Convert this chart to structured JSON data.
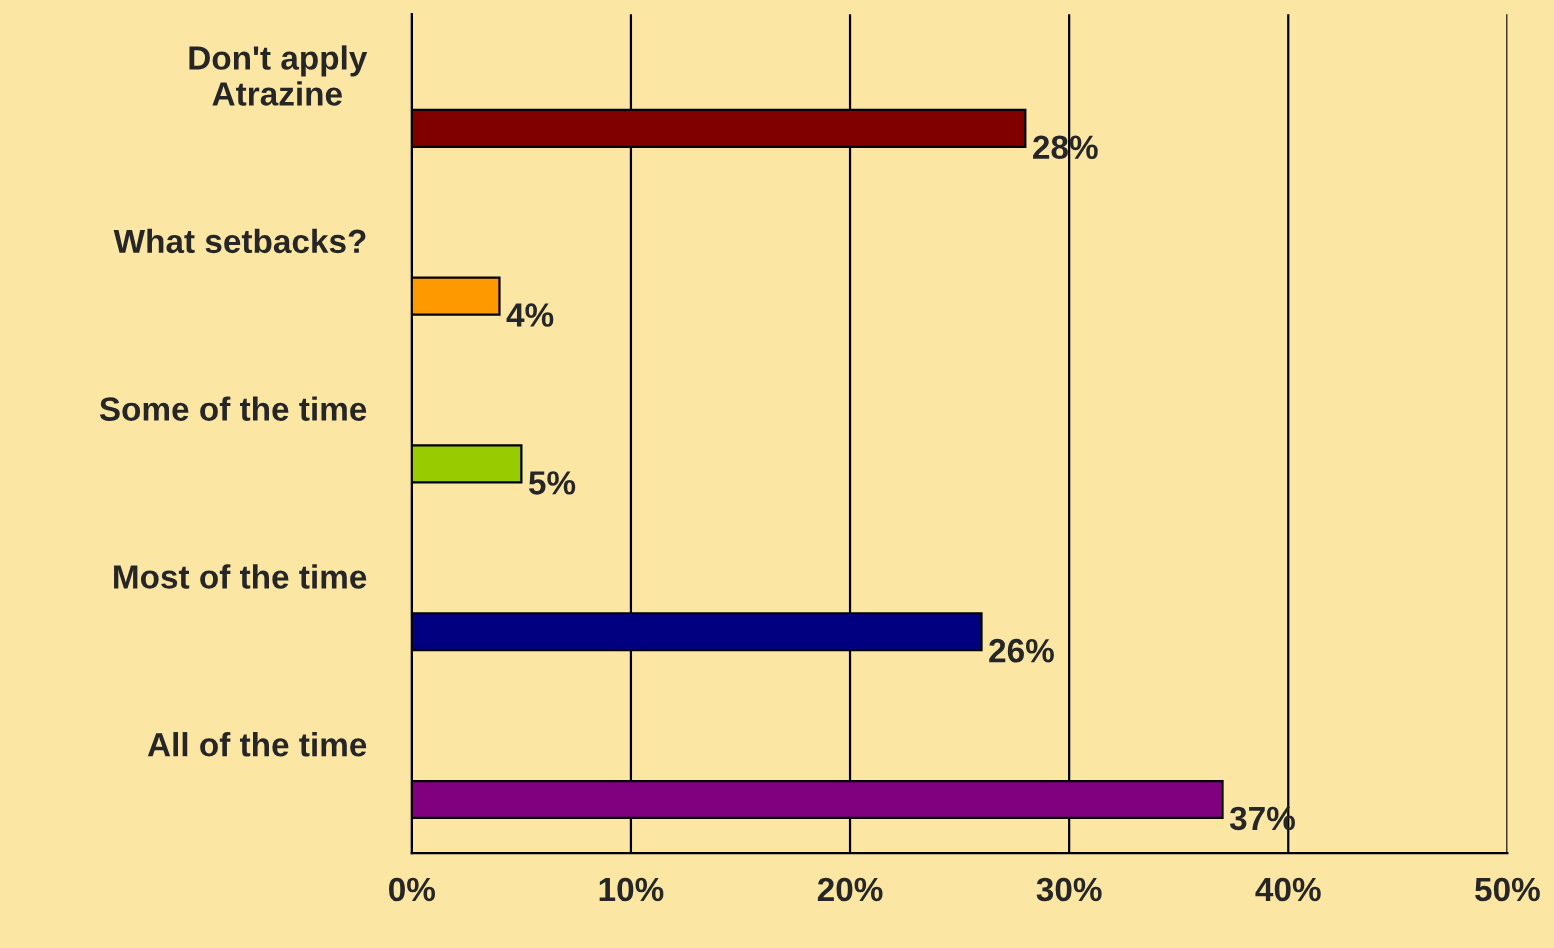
{
  "chart_data": {
    "type": "bar",
    "orientation": "horizontal",
    "categories": [
      "Don't apply\nAtrazine",
      "What setbacks?",
      "Some of the time",
      "Most of the time",
      "All of the time"
    ],
    "values": [
      28,
      4,
      5,
      26,
      37
    ],
    "colors": [
      "#800000",
      "#ff9900",
      "#99cc00",
      "#000080",
      "#800080"
    ],
    "xlim": [
      0,
      50
    ],
    "xticks": [
      {
        "value": 0,
        "label": "0%"
      },
      {
        "value": 10,
        "label": "10%"
      },
      {
        "value": 20,
        "label": "20%"
      },
      {
        "value": 30,
        "label": "30%"
      },
      {
        "value": 40,
        "label": "40%"
      },
      {
        "value": 50,
        "label": "50%"
      }
    ],
    "value_labels": [
      "28%",
      "4%",
      "5%",
      "26%",
      "37%"
    ],
    "grid": "x",
    "legend": false
  }
}
